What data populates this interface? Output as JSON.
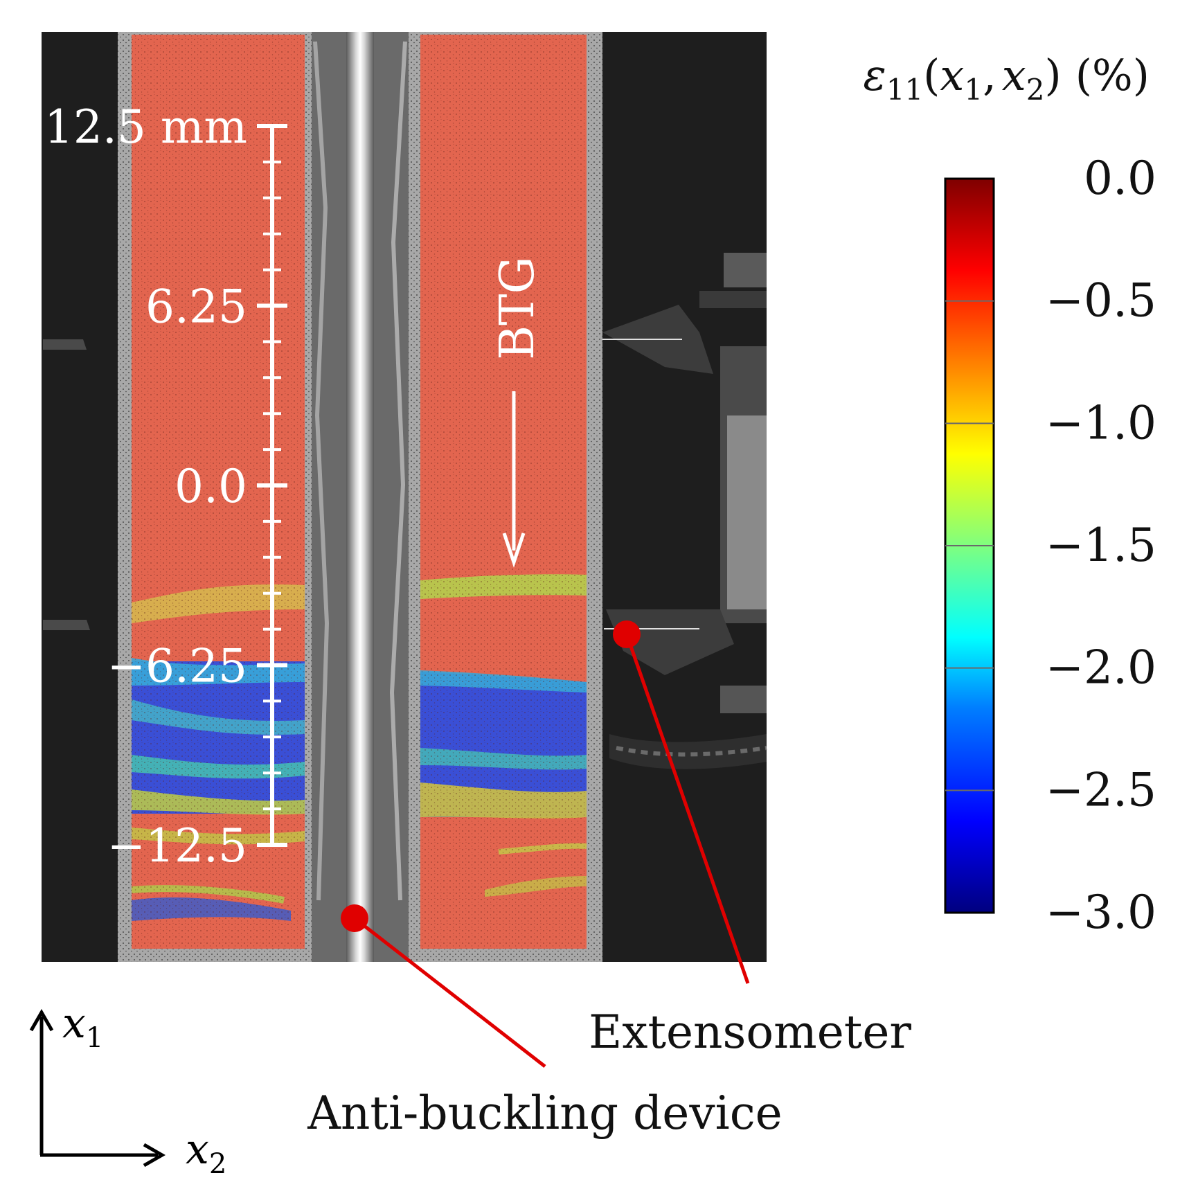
{
  "colorbar": {
    "title_symbol": "ε",
    "title_sub": "11",
    "title_args_open": "(",
    "x1_var": "x",
    "x1_sub": "1",
    "comma": ",",
    "x2_var": "x",
    "x2_sub": "2",
    "title_args_close": ")",
    "title_unit": "(%)",
    "min": -3.0,
    "max": 0.0,
    "ticks": [
      {
        "value": 0.0,
        "label": "0.0"
      },
      {
        "value": -0.5,
        "label": "−0.5"
      },
      {
        "value": -1.0,
        "label": "−1.0"
      },
      {
        "value": -1.5,
        "label": "−1.5"
      },
      {
        "value": -2.0,
        "label": "−2.0"
      },
      {
        "value": -2.5,
        "label": "−2.5"
      },
      {
        "value": -3.0,
        "label": "−3.0"
      }
    ],
    "colormap": [
      "#00007f",
      "#0000ff",
      "#007fff",
      "#00ffff",
      "#7fff7f",
      "#ffff00",
      "#ff7f00",
      "#ff0000",
      "#7f0000"
    ]
  },
  "scale_bar": {
    "ticks": [
      {
        "value": 12.5,
        "label": "12.5 mm"
      },
      {
        "value": 6.25,
        "label": "6.25"
      },
      {
        "value": 0.0,
        "label": "0.0"
      },
      {
        "value": -6.25,
        "label": "−6.25"
      },
      {
        "value": -12.5,
        "label": "−12.5"
      }
    ]
  },
  "arrow_label": "BTG",
  "callouts": {
    "extensometer": "Extensometer",
    "anti_buckling": "Anti-buckling device"
  },
  "axes": {
    "vertical_var": "x",
    "vertical_sub": "1",
    "horizontal_var": "x",
    "horizontal_sub": "2"
  },
  "colors": {
    "callout": "#e00000",
    "background_dark": "#1e1e1e",
    "specimen": "#e06555"
  }
}
